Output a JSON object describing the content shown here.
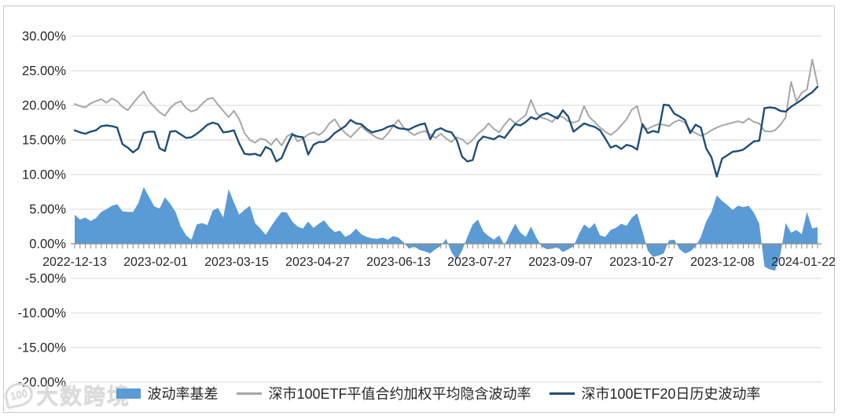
{
  "watermark": {
    "logo_text": "100",
    "text": "大数跨境"
  },
  "legend": {
    "items": [
      {
        "label": "波动率基差",
        "type": "area"
      },
      {
        "label": "深市100ETF平值合约加权平均隐含波动率",
        "type": "line"
      },
      {
        "label": "深市100ETF20日历史波动率",
        "type": "line"
      }
    ]
  },
  "chart_data": {
    "type": "area+line combo (volatility basis with implied and historical volatility)",
    "title": "",
    "xlabel": "",
    "ylabel": "",
    "ylim": [
      -20,
      30
    ],
    "grid": "horizontal",
    "legend_position": "bottom-center",
    "y_tick_labels": [
      "30.00%",
      "25.00%",
      "20.00%",
      "15.00%",
      "10.00%",
      "5.00%",
      "0.00%",
      "-5.00%",
      "-10.00%",
      "-15.00%",
      "-20.00%"
    ],
    "x_labels": [
      "2022-12-13",
      "2023-02-01",
      "2023-03-15",
      "2023-04-27",
      "2023-06-13",
      "2023-07-27",
      "2023-09-07",
      "2023-10-27",
      "2023-12-08",
      "2024-01-22"
    ],
    "colors": {
      "gridline": "#d9d9d9",
      "axis": "#8c8c8c",
      "text": "#262626"
    },
    "series": [
      {
        "name": "波动率基差",
        "type": "area",
        "color": "#5B9BD5",
        "unit": "%",
        "values": [
          4.2,
          3.5,
          3.8,
          3.3,
          3.7,
          4.6,
          5.0,
          5.5,
          5.7,
          4.7,
          4.6,
          4.6,
          5.9,
          8.2,
          6.8,
          5.4,
          5.1,
          6.7,
          5.8,
          4.6,
          2.5,
          1.2,
          0.6,
          2.8,
          3.0,
          2.7,
          4.8,
          5.2,
          3.8,
          7.9,
          6.0,
          4.2,
          4.9,
          5.5,
          3.0,
          2.2,
          1.3,
          2.5,
          3.6,
          4.6,
          4.5,
          3.2,
          2.5,
          2.2,
          3.2,
          2.3,
          2.9,
          3.4,
          2.4,
          1.7,
          1.9,
          1.0,
          1.4,
          2.2,
          1.4,
          1.0,
          0.8,
          0.7,
          0.9,
          0.6,
          1.1,
          0.9,
          0.2,
          -0.7,
          -0.4,
          -0.9,
          -1.1,
          -1.4,
          -0.8,
          -0.3,
          0.7,
          -1.2,
          -2.3,
          -1.0,
          1.0,
          2.8,
          3.5,
          1.8,
          1.1,
          0.6,
          1.2,
          -0.2,
          1.4,
          2.9,
          1.6,
          1.0,
          2.5,
          0.9,
          -0.4,
          -0.8,
          -0.7,
          -0.5,
          -1.2,
          -0.8,
          -0.4,
          1.4,
          2.8,
          2.2,
          3.0,
          1.2,
          1.0,
          2.0,
          2.3,
          2.9,
          2.6,
          3.8,
          4.4,
          1.8,
          -1.0,
          -1.9,
          -1.7,
          -1.4,
          0.5,
          0.6,
          -0.8,
          -1.4,
          -1.1,
          -0.4,
          1.0,
          3.2,
          4.6,
          7.0,
          6.2,
          5.6,
          4.9,
          5.5,
          5.3,
          5.5,
          4.5,
          2.9,
          -3.3,
          -3.7,
          -3.9,
          -1.5,
          3.0,
          1.6,
          2.0,
          1.4,
          4.6,
          2.2,
          2.4
        ]
      },
      {
        "name": "深市100ETF平值合约加权平均隐含波动率",
        "type": "line",
        "color": "#A6A6A6",
        "unit": "%",
        "values": [
          20.2,
          19.9,
          19.7,
          20.3,
          20.6,
          20.9,
          20.4,
          21.0,
          20.6,
          19.8,
          19.3,
          20.3,
          21.2,
          22.0,
          20.6,
          19.8,
          19.0,
          18.5,
          19.6,
          20.3,
          20.6,
          19.6,
          19.1,
          19.4,
          20.2,
          20.9,
          21.1,
          20.1,
          19.2,
          18.3,
          19.2,
          18.0,
          16.0,
          15.0,
          14.6,
          15.2,
          15.0,
          14.3,
          15.2,
          14.2,
          15.5,
          16.0,
          14.8,
          15.2,
          15.8,
          16.1,
          15.7,
          16.3,
          17.4,
          18.0,
          16.8,
          16.0,
          15.4,
          16.2,
          17.0,
          16.3,
          15.8,
          15.3,
          15.1,
          15.9,
          17.0,
          17.9,
          16.8,
          16.2,
          15.7,
          16.1,
          16.3,
          15.8,
          15.3,
          15.9,
          15.2,
          14.7,
          15.4,
          15.1,
          14.4,
          15.0,
          15.9,
          16.5,
          17.4,
          16.6,
          16.1,
          17.2,
          18.1,
          17.4,
          18.0,
          18.6,
          20.8,
          18.9,
          18.2,
          18.0,
          17.6,
          18.5,
          18.3,
          17.7,
          17.5,
          17.8,
          19.9,
          18.3,
          17.6,
          16.8,
          16.2,
          15.7,
          16.3,
          17.1,
          18.0,
          19.4,
          19.9,
          16.9,
          16.6,
          17.0,
          17.3,
          17.2,
          17.0,
          17.6,
          17.9,
          17.5,
          16.4,
          16.0,
          15.6,
          15.9,
          16.4,
          16.8,
          17.1,
          17.3,
          17.5,
          17.7,
          17.5,
          18.1,
          17.6,
          17.4,
          16.3,
          16.2,
          16.4,
          17.2,
          18.3,
          23.4,
          20.6,
          21.8,
          22.3,
          26.6,
          23.0
        ]
      },
      {
        "name": "深市100ETF20日历史波动率",
        "type": "line",
        "color": "#1F4E79",
        "unit": "%",
        "values": [
          16.4,
          16.1,
          15.9,
          16.2,
          16.4,
          17.0,
          17.1,
          17.0,
          16.8,
          14.4,
          13.9,
          13.2,
          13.8,
          16.0,
          16.2,
          16.2,
          13.8,
          13.4,
          16.2,
          16.3,
          15.8,
          15.3,
          15.4,
          15.9,
          16.5,
          17.2,
          17.5,
          17.3,
          16.1,
          16.2,
          16.4,
          14.5,
          13.0,
          12.9,
          13.0,
          12.7,
          14.0,
          13.6,
          11.9,
          12.4,
          14.2,
          15.8,
          15.5,
          15.4,
          12.9,
          14.3,
          14.7,
          14.7,
          15.2,
          16.0,
          16.5,
          17.0,
          17.9,
          17.4,
          17.3,
          16.6,
          16.1,
          16.3,
          16.5,
          16.9,
          17.1,
          16.7,
          16.6,
          16.5,
          16.9,
          17.2,
          17.4,
          15.1,
          16.4,
          16.7,
          16.3,
          16.1,
          15.0,
          12.6,
          11.9,
          12.1,
          14.7,
          15.5,
          15.3,
          15.1,
          15.6,
          15.3,
          16.3,
          17.3,
          17.1,
          17.6,
          18.3,
          18.0,
          18.6,
          18.9,
          18.5,
          18.1,
          19.3,
          18.4,
          16.2,
          16.8,
          17.4,
          17.1,
          16.9,
          16.4,
          15.2,
          13.9,
          14.2,
          13.7,
          14.3,
          14.1,
          13.6,
          17.3,
          16.0,
          16.3,
          16.1,
          20.1,
          20.0,
          18.8,
          18.4,
          17.9,
          16.0,
          17.2,
          16.8,
          13.8,
          12.5,
          9.7,
          12.3,
          12.8,
          13.3,
          13.4,
          13.6,
          14.2,
          14.8,
          14.9,
          19.6,
          19.7,
          19.6,
          19.2,
          19.1,
          19.8,
          20.3,
          20.8,
          21.4,
          21.9,
          22.7
        ]
      }
    ]
  }
}
